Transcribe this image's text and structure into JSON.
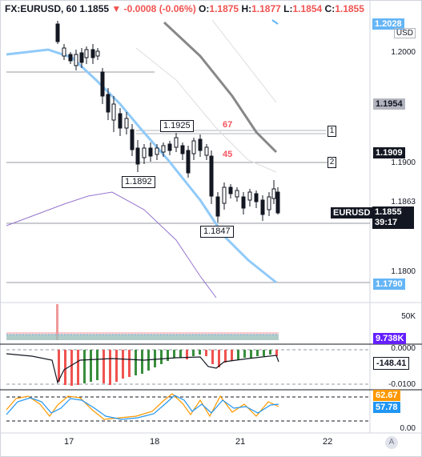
{
  "header": {
    "symbol": "FX:EURUSD, 60",
    "price": "1.1855",
    "arrow": "▼",
    "change": "-0.0008 (-0.06%)",
    "o_label": "O:",
    "o_value": "1.1875",
    "h_label": "H:",
    "h_value": "1.1877",
    "l_label": "L:",
    "l_value": "1.1854",
    "c_label": "C:",
    "c_value": "1.1855"
  },
  "price_axis": {
    "currency": "USD",
    "ticks": [
      "1.2028",
      "1.2000",
      "1.1900",
      "1.1863",
      "1.1800"
    ],
    "tags": [
      {
        "value": "1.1954",
        "bg": "#b2b5be",
        "fg": "#131722"
      },
      {
        "value": "1.1909",
        "bg": "#131722",
        "fg": "#ffffff"
      },
      {
        "value": "1.1790",
        "bg": "#64b5f6",
        "fg": "#ffffff"
      }
    ],
    "current_symbol": "EURUSD",
    "current_price": "1.1855",
    "countdown": "39:17"
  },
  "annotations": {
    "high1": "1.1925",
    "low1": "1.1892",
    "low2": "1.1847",
    "fib67": "67",
    "fib45": "45",
    "marker1": "1",
    "marker2": "2"
  },
  "volume_pane": {
    "tick": "50K",
    "value": "9.738K",
    "value_color": "#651fff"
  },
  "macd_pane": {
    "ticks": [
      "0.0000",
      "-0.0100"
    ],
    "value": "-148.41"
  },
  "stoch_pane": {
    "ticks": [
      "0.00"
    ],
    "k_value": "62.67",
    "k_color": "#ff9800",
    "d_value": "57.78",
    "d_color": "#2196f3"
  },
  "time_axis": {
    "labels": [
      "17",
      "18",
      "21",
      "22"
    ],
    "auto_button": "A"
  }
}
